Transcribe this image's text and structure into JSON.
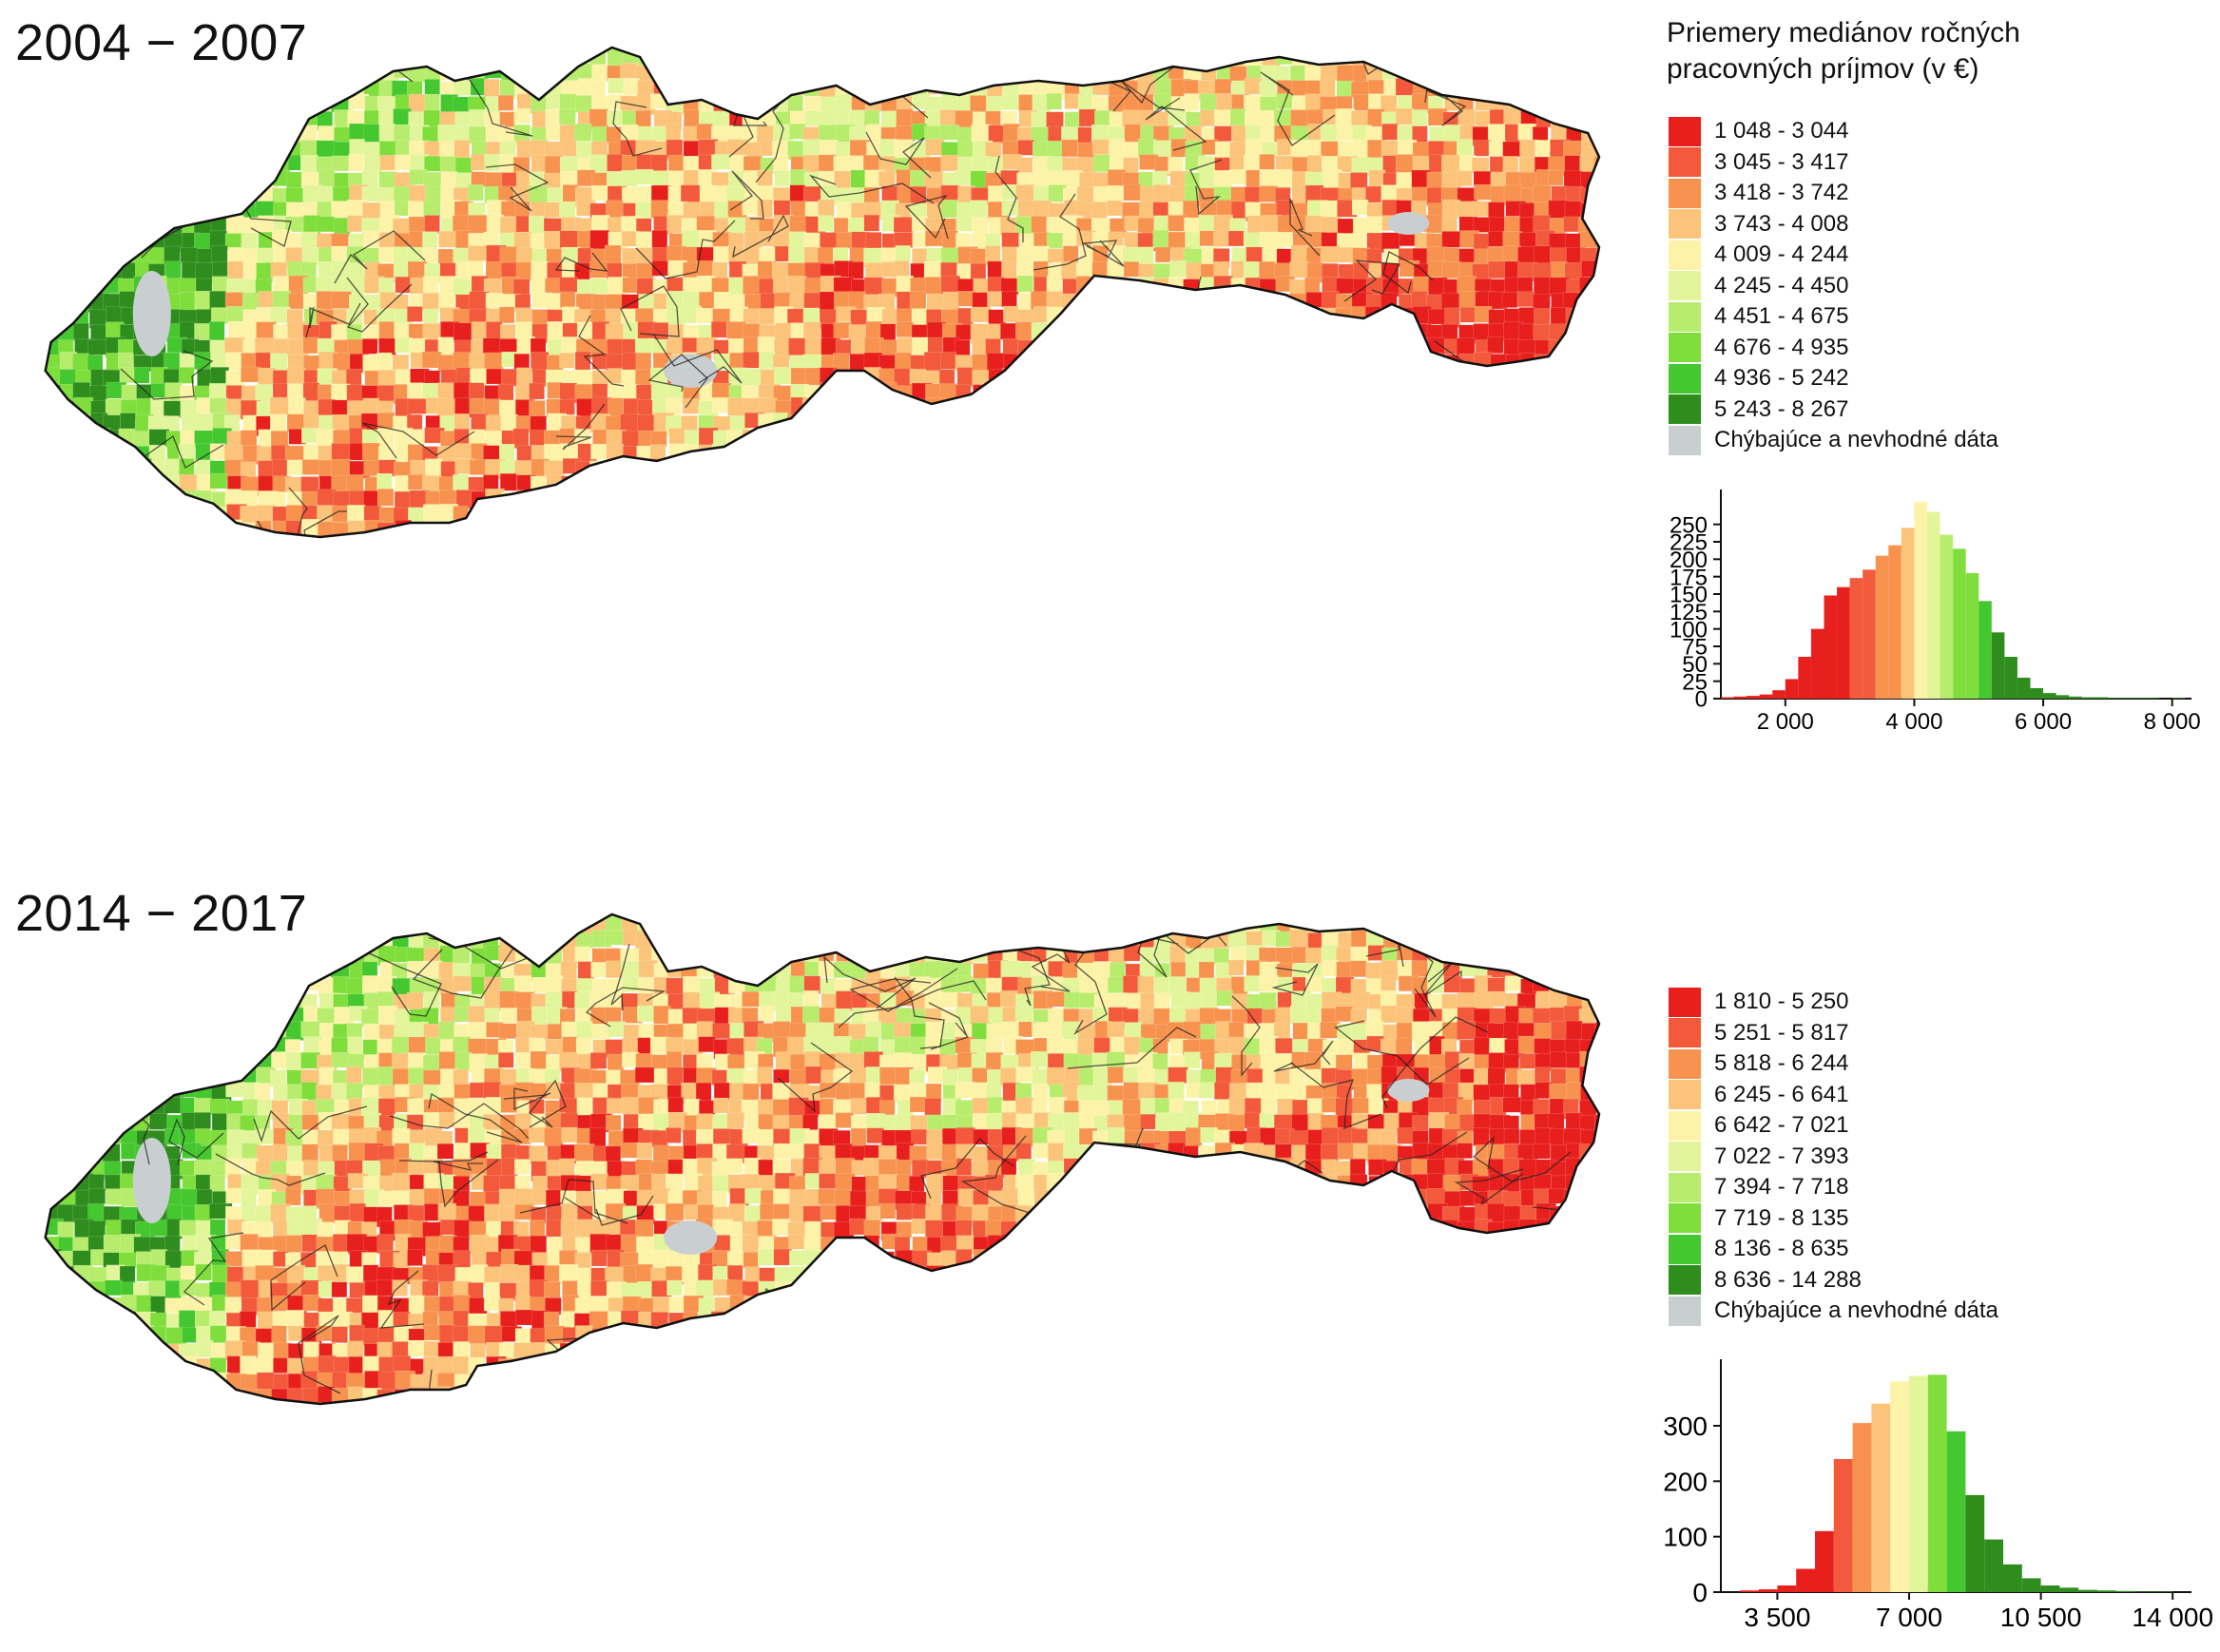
{
  "periods": [
    "2004 − 2007",
    "2014 − 2017"
  ],
  "legend_title_line1": "Priemery mediánov ročných",
  "legend_title_line2": "pracovných príjmov (v €)",
  "colors": [
    "#e8201d",
    "#f25a3b",
    "#f7934f",
    "#fcc37a",
    "#fdf3a8",
    "#e2f59a",
    "#b8ec6c",
    "#7fde3c",
    "#45c72f",
    "#2f8d1e",
    "#c9cfd0"
  ],
  "legend_2004_2007": [
    "1 048 - 3 044",
    "3 045 - 3 417",
    "3 418 - 3 742",
    "3 743 - 4 008",
    "4 009 - 4 244",
    "4 245 - 4 450",
    "4 451 - 4 675",
    "4 676 - 4 935",
    "4 936 - 5 242",
    "5 243 - 8 267",
    "Chýbajúce a nevhodné dáta"
  ],
  "legend_2014_2017": [
    "1 810 - 5 250",
    "5 251 - 5 817",
    "5 818 - 6 244",
    "6 245 - 6 641",
    "6 642 - 7 021",
    "7 022 - 7 393",
    "7 394 - 7 718",
    "7 719 - 8 135",
    "8 136 - 8 635",
    "8 636 - 14 288",
    "Chýbajúce a nevhodné dáta"
  ],
  "chart_data": [
    {
      "type": "bar",
      "title": "2004 − 2007",
      "xlabel": "",
      "ylabel": "",
      "xlim": [
        1000,
        8300
      ],
      "ylim": [
        0,
        300
      ],
      "yticks": [
        0,
        25,
        50,
        75,
        100,
        125,
        150,
        175,
        200,
        225,
        250
      ],
      "xticks": [
        2000,
        4000,
        6000,
        8000
      ],
      "xtick_labels": [
        "2 000",
        "4 000",
        "6 000",
        "8 000"
      ],
      "bin_width": 200,
      "bins_start": [
        1000,
        1200,
        1400,
        1600,
        1800,
        2000,
        2200,
        2400,
        2600,
        2800,
        3000,
        3200,
        3400,
        3600,
        3800,
        4000,
        4200,
        4400,
        4600,
        4800,
        5000,
        5200,
        5400,
        5600,
        5800,
        6000,
        6200,
        6400,
        6600,
        6800,
        7000,
        7200,
        7400,
        7600,
        7800,
        8000
      ],
      "values": [
        2,
        3,
        4,
        6,
        12,
        28,
        60,
        100,
        148,
        160,
        173,
        185,
        205,
        220,
        245,
        282,
        268,
        235,
        215,
        180,
        140,
        95,
        60,
        30,
        15,
        8,
        5,
        3,
        2,
        2,
        1,
        1,
        1,
        1,
        0,
        1
      ],
      "color_class": [
        0,
        0,
        0,
        0,
        0,
        0,
        0,
        0,
        0,
        0,
        1,
        1,
        2,
        2,
        3,
        4,
        5,
        6,
        7,
        7,
        8,
        9,
        9,
        9,
        9,
        9,
        9,
        9,
        9,
        9,
        9,
        9,
        9,
        9,
        9,
        9
      ]
    },
    {
      "type": "bar",
      "title": "2014 − 2017",
      "xlabel": "",
      "ylabel": "",
      "xlim": [
        2000,
        14500
      ],
      "ylim": [
        0,
        420
      ],
      "yticks": [
        0,
        100,
        200,
        300
      ],
      "xticks": [
        3500,
        7000,
        10500,
        14000
      ],
      "xtick_labels": [
        "3 500",
        "7 000",
        "10 500",
        "14 000"
      ],
      "bin_width": 500,
      "bins_start": [
        2500,
        3000,
        3500,
        4000,
        4500,
        5000,
        5500,
        6000,
        6500,
        7000,
        7500,
        8000,
        8500,
        9000,
        9500,
        10000,
        10500,
        11000,
        11500,
        12000,
        12500,
        13000,
        13500,
        14000
      ],
      "values": [
        3,
        5,
        12,
        42,
        110,
        240,
        305,
        340,
        380,
        390,
        392,
        290,
        175,
        95,
        50,
        25,
        12,
        8,
        4,
        3,
        2,
        1,
        1,
        0
      ],
      "color_class": [
        0,
        0,
        0,
        0,
        0,
        1,
        2,
        3,
        4,
        5,
        7,
        8,
        9,
        9,
        9,
        9,
        9,
        9,
        9,
        9,
        9,
        9,
        9,
        9
      ]
    }
  ]
}
